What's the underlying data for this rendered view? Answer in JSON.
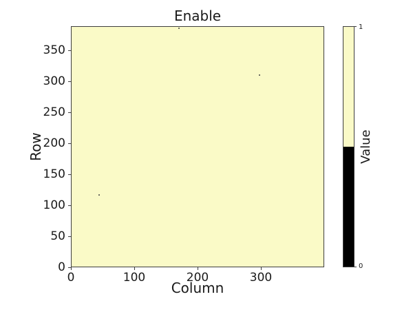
{
  "chart_data": {
    "type": "heatmap",
    "title": "Enable",
    "xlabel": "Column",
    "ylabel": "Row",
    "xlim": [
      0,
      400
    ],
    "ylim": [
      0,
      389
    ],
    "x_ticks": [
      0,
      100,
      200,
      300
    ],
    "y_ticks": [
      0,
      50,
      100,
      150,
      200,
      250,
      300,
      350
    ],
    "grid": false,
    "background_value": 1,
    "zero_cells": [
      {
        "col": 170,
        "row": 387
      },
      {
        "col": 297,
        "row": 311
      },
      {
        "col": 44,
        "row": 118
      },
      {
        "col": 68,
        "row": 1
      }
    ],
    "colors": {
      "value_1": "#fafac7",
      "value_0": "#000000",
      "zero_dot": "#6b6b60",
      "spine": "#3d3d3d"
    },
    "colorbar": {
      "label": "Value",
      "tick_high": "1",
      "tick_low": "0",
      "position": "right"
    }
  }
}
